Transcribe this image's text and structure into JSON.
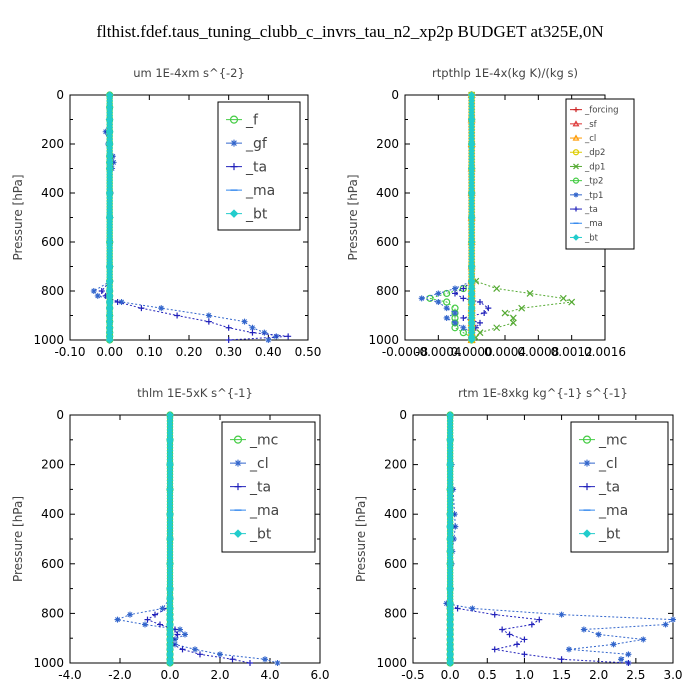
{
  "title": "flthist.fdef.taus_tuning_clubb_c_invrs_tau_n2_xp2p  BUDGET at325E,0N",
  "chart_data": [
    {
      "type": "line",
      "title": "um  1E-4xm s^{-2}",
      "ylabel": "Pressure [hPa]",
      "xlim": [
        -0.1,
        0.5
      ],
      "ylim": [
        1000,
        0
      ],
      "xticks": [
        "-0.10",
        "0.00",
        "0.10",
        "0.20",
        "0.30",
        "0.40",
        "0.50"
      ],
      "yticks": [
        "0",
        "200",
        "400",
        "600",
        "800",
        "1000"
      ],
      "levels": [
        0,
        50,
        100,
        150,
        200,
        250,
        275,
        300,
        400,
        500,
        600,
        700,
        760,
        800,
        820,
        845,
        870,
        900,
        925,
        950,
        970,
        985,
        1000
      ],
      "series": [
        {
          "name": "_f",
          "color": "#44cc44",
          "marker": "circle",
          "values": [
            0,
            0,
            0,
            0,
            0,
            0,
            0,
            0,
            0,
            0,
            0,
            0,
            0,
            0,
            0,
            0,
            0,
            0,
            0,
            0,
            0,
            0,
            0
          ]
        },
        {
          "name": "_gf",
          "color": "#3366cc",
          "marker": "star",
          "values": [
            0.0,
            0.0,
            -0.002,
            -0.01,
            -0.004,
            0.008,
            0.01,
            0.006,
            0.003,
            0.002,
            0.002,
            0.002,
            0.002,
            -0.04,
            -0.03,
            0.03,
            0.13,
            0.25,
            0.34,
            0.36,
            0.39,
            0.42,
            0.4
          ]
        },
        {
          "name": "_ta",
          "color": "#2222bb",
          "marker": "plus",
          "values": [
            0,
            0,
            0,
            -0.005,
            0,
            0.005,
            0.005,
            0,
            0,
            0,
            0,
            0,
            0,
            -0.02,
            -0.01,
            0.02,
            0.08,
            0.17,
            0.25,
            0.3,
            0.36,
            0.45,
            0.3
          ]
        },
        {
          "name": "_ma",
          "color": "#3388ee",
          "marker": "dash",
          "values": [
            0,
            0,
            0,
            0,
            0,
            0,
            0,
            0,
            0,
            0,
            0,
            0,
            0,
            0,
            0,
            0,
            0,
            0,
            0,
            0,
            0,
            0,
            0
          ]
        },
        {
          "name": "_bt",
          "color": "#22cccc",
          "marker": "diamond",
          "values": [
            0,
            0,
            0,
            0,
            0,
            0,
            0,
            0,
            0,
            0,
            0,
            0,
            0,
            0,
            0,
            0,
            0,
            0,
            0,
            0,
            0,
            0,
            0
          ]
        }
      ],
      "legend": "top-right"
    },
    {
      "type": "line",
      "title": "rtpthlp  1E-4x(kg K)/(kg s)",
      "ylabel": "Pressure [hPa]",
      "xlim": [
        -0.0008,
        0.0016
      ],
      "ylim": [
        1000,
        0
      ],
      "xticks": [
        "-0.0008",
        "-0.0004",
        "0.0000",
        "0.0004",
        "0.0008",
        "0.0012",
        "0.0016"
      ],
      "yticks": [
        "0",
        "200",
        "400",
        "600",
        "800",
        "1000"
      ],
      "levels": [
        0,
        100,
        200,
        300,
        400,
        500,
        600,
        700,
        760,
        790,
        810,
        830,
        845,
        870,
        890,
        910,
        930,
        950,
        970,
        990,
        1000
      ],
      "series": [
        {
          "name": "_forcing",
          "color": "#cc2222",
          "marker": "plus",
          "values": [
            0,
            0,
            0,
            0,
            0,
            0,
            0,
            0,
            0,
            0,
            0,
            0,
            0,
            0,
            0,
            0,
            0,
            0,
            0,
            0,
            0
          ]
        },
        {
          "name": "_sf",
          "color": "#dd3333",
          "marker": "triangle",
          "values": [
            0,
            0,
            0,
            0,
            0,
            0,
            0,
            0,
            0,
            0,
            0,
            0,
            0,
            0,
            0,
            0,
            0,
            0,
            0,
            0,
            0
          ]
        },
        {
          "name": "_cl",
          "color": "#ff9900",
          "marker": "triangle",
          "values": [
            0,
            0,
            0,
            0,
            0,
            0,
            0,
            0,
            0,
            0,
            0,
            0,
            0,
            0,
            0,
            0,
            0,
            0,
            0,
            0,
            0
          ]
        },
        {
          "name": "_dp2",
          "color": "#ddcc00",
          "marker": "circle",
          "values": [
            0,
            0,
            0,
            0,
            0,
            0,
            0,
            0,
            0,
            0,
            0,
            0,
            0,
            0,
            0,
            0,
            0,
            0,
            0,
            0,
            0
          ]
        },
        {
          "name": "_dp1",
          "color": "#55aa33",
          "marker": "x",
          "values": [
            0,
            0,
            0,
            0,
            0,
            0,
            0,
            0,
            5e-05,
            0.0003,
            0.0007,
            0.0011,
            0.0012,
            0.0006,
            0.0004,
            0.0005,
            0.0005,
            0.0003,
            0.0001,
            5e-05,
            0
          ]
        },
        {
          "name": "_tp2",
          "color": "#44cc44",
          "marker": "circle",
          "values": [
            0,
            0,
            0,
            0,
            0,
            0,
            0,
            0,
            0,
            -0.0001,
            -0.0003,
            -0.0005,
            -0.0003,
            -0.0002,
            -0.0002,
            -0.0002,
            -0.0002,
            -0.0002,
            -0.0001,
            0,
            0
          ]
        },
        {
          "name": "_tp1",
          "color": "#3366cc",
          "marker": "star",
          "values": [
            0,
            0,
            0,
            0,
            0,
            0,
            0,
            0,
            0,
            -0.0002,
            -0.0004,
            -0.0006,
            -0.0004,
            -0.0003,
            -0.0002,
            -0.0003,
            -0.0002,
            -0.0001,
            0,
            0,
            0
          ]
        },
        {
          "name": "_ta",
          "color": "#2222bb",
          "marker": "plus",
          "values": [
            0,
            0,
            0,
            0,
            0,
            0,
            0,
            0,
            0,
            -0.0001,
            -0.0002,
            -0.0001,
            0.0001,
            0.0002,
            0.00015,
            -0.0001,
            0.0001,
            5e-05,
            0,
            0,
            0
          ]
        },
        {
          "name": "_ma",
          "color": "#3388ee",
          "marker": "dash",
          "values": [
            0,
            0,
            0,
            0,
            0,
            0,
            0,
            0,
            0,
            0,
            0,
            0,
            0,
            0,
            0,
            0,
            0,
            0,
            0,
            0,
            0
          ]
        },
        {
          "name": "_bt",
          "color": "#22cccc",
          "marker": "diamond",
          "values": [
            0,
            0,
            0,
            0,
            0,
            0,
            0,
            0,
            0,
            0,
            0,
            0,
            0,
            0,
            0,
            0,
            0,
            0,
            0,
            0,
            0
          ]
        }
      ],
      "legend": "top-right"
    },
    {
      "type": "line",
      "title": "thlm  1E-5xK s^{-1}",
      "ylabel": "Pressure [hPa]",
      "xlim": [
        -4.0,
        6.0
      ],
      "ylim": [
        1000,
        0
      ],
      "xticks": [
        "-4.0",
        "-2.0",
        "0.0",
        "2.0",
        "4.0",
        "6.0"
      ],
      "yticks": [
        "0",
        "200",
        "400",
        "600",
        "800",
        "1000"
      ],
      "levels": [
        0,
        100,
        200,
        300,
        400,
        500,
        600,
        700,
        740,
        780,
        805,
        825,
        845,
        865,
        885,
        905,
        925,
        945,
        965,
        985,
        1000
      ],
      "series": [
        {
          "name": "_mc",
          "color": "#44cc44",
          "marker": "circle",
          "values": [
            0,
            0,
            0,
            0,
            0,
            0,
            0,
            0,
            0,
            0,
            0,
            0,
            0,
            0,
            0,
            0,
            0,
            0,
            0,
            0,
            0
          ]
        },
        {
          "name": "_cl",
          "color": "#3366cc",
          "marker": "star",
          "values": [
            0,
            0,
            0,
            0,
            0,
            0,
            0,
            0,
            0,
            -0.3,
            -1.6,
            -2.1,
            -1.0,
            0.4,
            0.6,
            0.2,
            0.2,
            1.0,
            2.0,
            3.8,
            4.3
          ]
        },
        {
          "name": "_ta",
          "color": "#2222bb",
          "marker": "plus",
          "values": [
            0,
            0,
            0,
            0,
            0,
            0,
            0,
            0,
            0,
            -0.1,
            -0.6,
            -0.9,
            -0.4,
            0.2,
            0.3,
            0.1,
            0.1,
            0.5,
            1.2,
            2.5,
            3.2
          ]
        },
        {
          "name": "_ma",
          "color": "#3388ee",
          "marker": "dash",
          "values": [
            0,
            0,
            0,
            0,
            0,
            0,
            0,
            0,
            0,
            0,
            0,
            0,
            0,
            0,
            0,
            0,
            0,
            0,
            0,
            0,
            0
          ]
        },
        {
          "name": "_bt",
          "color": "#22cccc",
          "marker": "diamond",
          "values": [
            0,
            0,
            0,
            0,
            0,
            0,
            0,
            0,
            0,
            0,
            0,
            0,
            0,
            0,
            0,
            0,
            0,
            0,
            0,
            0,
            0
          ]
        }
      ],
      "legend": "top-right"
    },
    {
      "type": "line",
      "title": "rtm  1E-8xkg kg^{-1} s^{-1}",
      "ylabel": "Pressure [hPa]",
      "xlim": [
        -0.5,
        3.0
      ],
      "ylim": [
        1000,
        0
      ],
      "xticks": [
        "-0.5",
        "0.0",
        "0.5",
        "1.0",
        "1.5",
        "2.0",
        "2.5",
        "3.0"
      ],
      "yticks": [
        "0",
        "200",
        "400",
        "600",
        "800",
        "1000"
      ],
      "levels": [
        0,
        100,
        200,
        300,
        400,
        450,
        500,
        550,
        600,
        700,
        760,
        780,
        805,
        825,
        845,
        865,
        885,
        905,
        925,
        945,
        965,
        985,
        1000
      ],
      "series": [
        {
          "name": "_mc",
          "color": "#44cc44",
          "marker": "circle",
          "values": [
            0,
            0,
            0,
            0,
            0,
            0,
            0,
            0,
            0,
            0,
            0,
            0,
            0,
            0,
            0,
            0,
            0,
            0,
            0,
            0,
            0,
            0,
            0
          ]
        },
        {
          "name": "_cl",
          "color": "#3366cc",
          "marker": "star",
          "values": [
            0,
            0.01,
            0.02,
            0.04,
            0.06,
            0.07,
            0.05,
            0.03,
            0.02,
            0.01,
            -0.05,
            0.3,
            1.5,
            3.0,
            2.9,
            1.8,
            2.0,
            2.6,
            2.2,
            1.6,
            2.4,
            2.3,
            2.4
          ]
        },
        {
          "name": "_ta",
          "color": "#2222bb",
          "marker": "plus",
          "values": [
            0,
            0,
            0,
            0.02,
            0.03,
            0.03,
            0.02,
            0.01,
            0.01,
            0,
            -0.02,
            0.1,
            0.6,
            1.2,
            1.1,
            0.7,
            0.8,
            1.0,
            0.9,
            0.6,
            1.0,
            1.5,
            2.4
          ]
        },
        {
          "name": "_ma",
          "color": "#3388ee",
          "marker": "dash",
          "values": [
            0,
            0,
            0,
            0,
            0,
            0,
            0,
            0,
            0,
            0,
            0,
            0,
            0,
            0,
            0,
            0,
            0,
            0,
            0,
            0,
            0,
            0,
            0
          ]
        },
        {
          "name": "_bt",
          "color": "#22cccc",
          "marker": "diamond",
          "values": [
            0,
            0,
            0,
            0,
            0,
            0,
            0,
            0,
            0,
            0,
            0,
            0,
            0,
            0,
            0,
            0,
            0,
            0,
            0,
            0,
            0,
            0,
            0
          ]
        }
      ],
      "legend": "top-right"
    }
  ]
}
